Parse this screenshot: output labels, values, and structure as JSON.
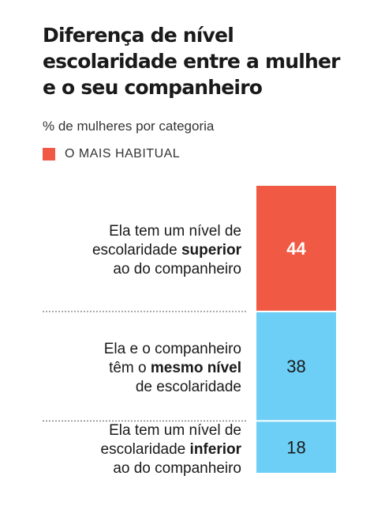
{
  "title": "Diferença de nível escolaridade entre a mulher e o seu companheiro",
  "subtitle": "% de mulheres por categoria",
  "legend": {
    "label": "O MAIS HABITUAL",
    "color": "#f05a44"
  },
  "colors": {
    "highlight": "#f05a44",
    "default": "#6dcff6",
    "divider": "#555555"
  },
  "chart_data": {
    "type": "bar",
    "orientation": "stacked-vertical",
    "title": "Diferença de nível escolaridade entre a mulher e o seu companheiro",
    "subtitle": "% de mulheres por categoria",
    "categories": [
      [
        "Ela tem um nível de",
        "escolaridade ",
        "superior",
        "",
        "ao do companheiro"
      ],
      [
        "Ela e o companheiro",
        "têm o ",
        "mesmo nível",
        "",
        "de escolaridade"
      ],
      [
        "Ela tem um nível de",
        "escolaridade ",
        "inferior",
        "",
        "ao do companheiro"
      ]
    ],
    "values": [
      44,
      38,
      18
    ],
    "highlighted": [
      true,
      false,
      false
    ],
    "legend": [
      "O MAIS HABITUAL"
    ],
    "grid": false
  }
}
